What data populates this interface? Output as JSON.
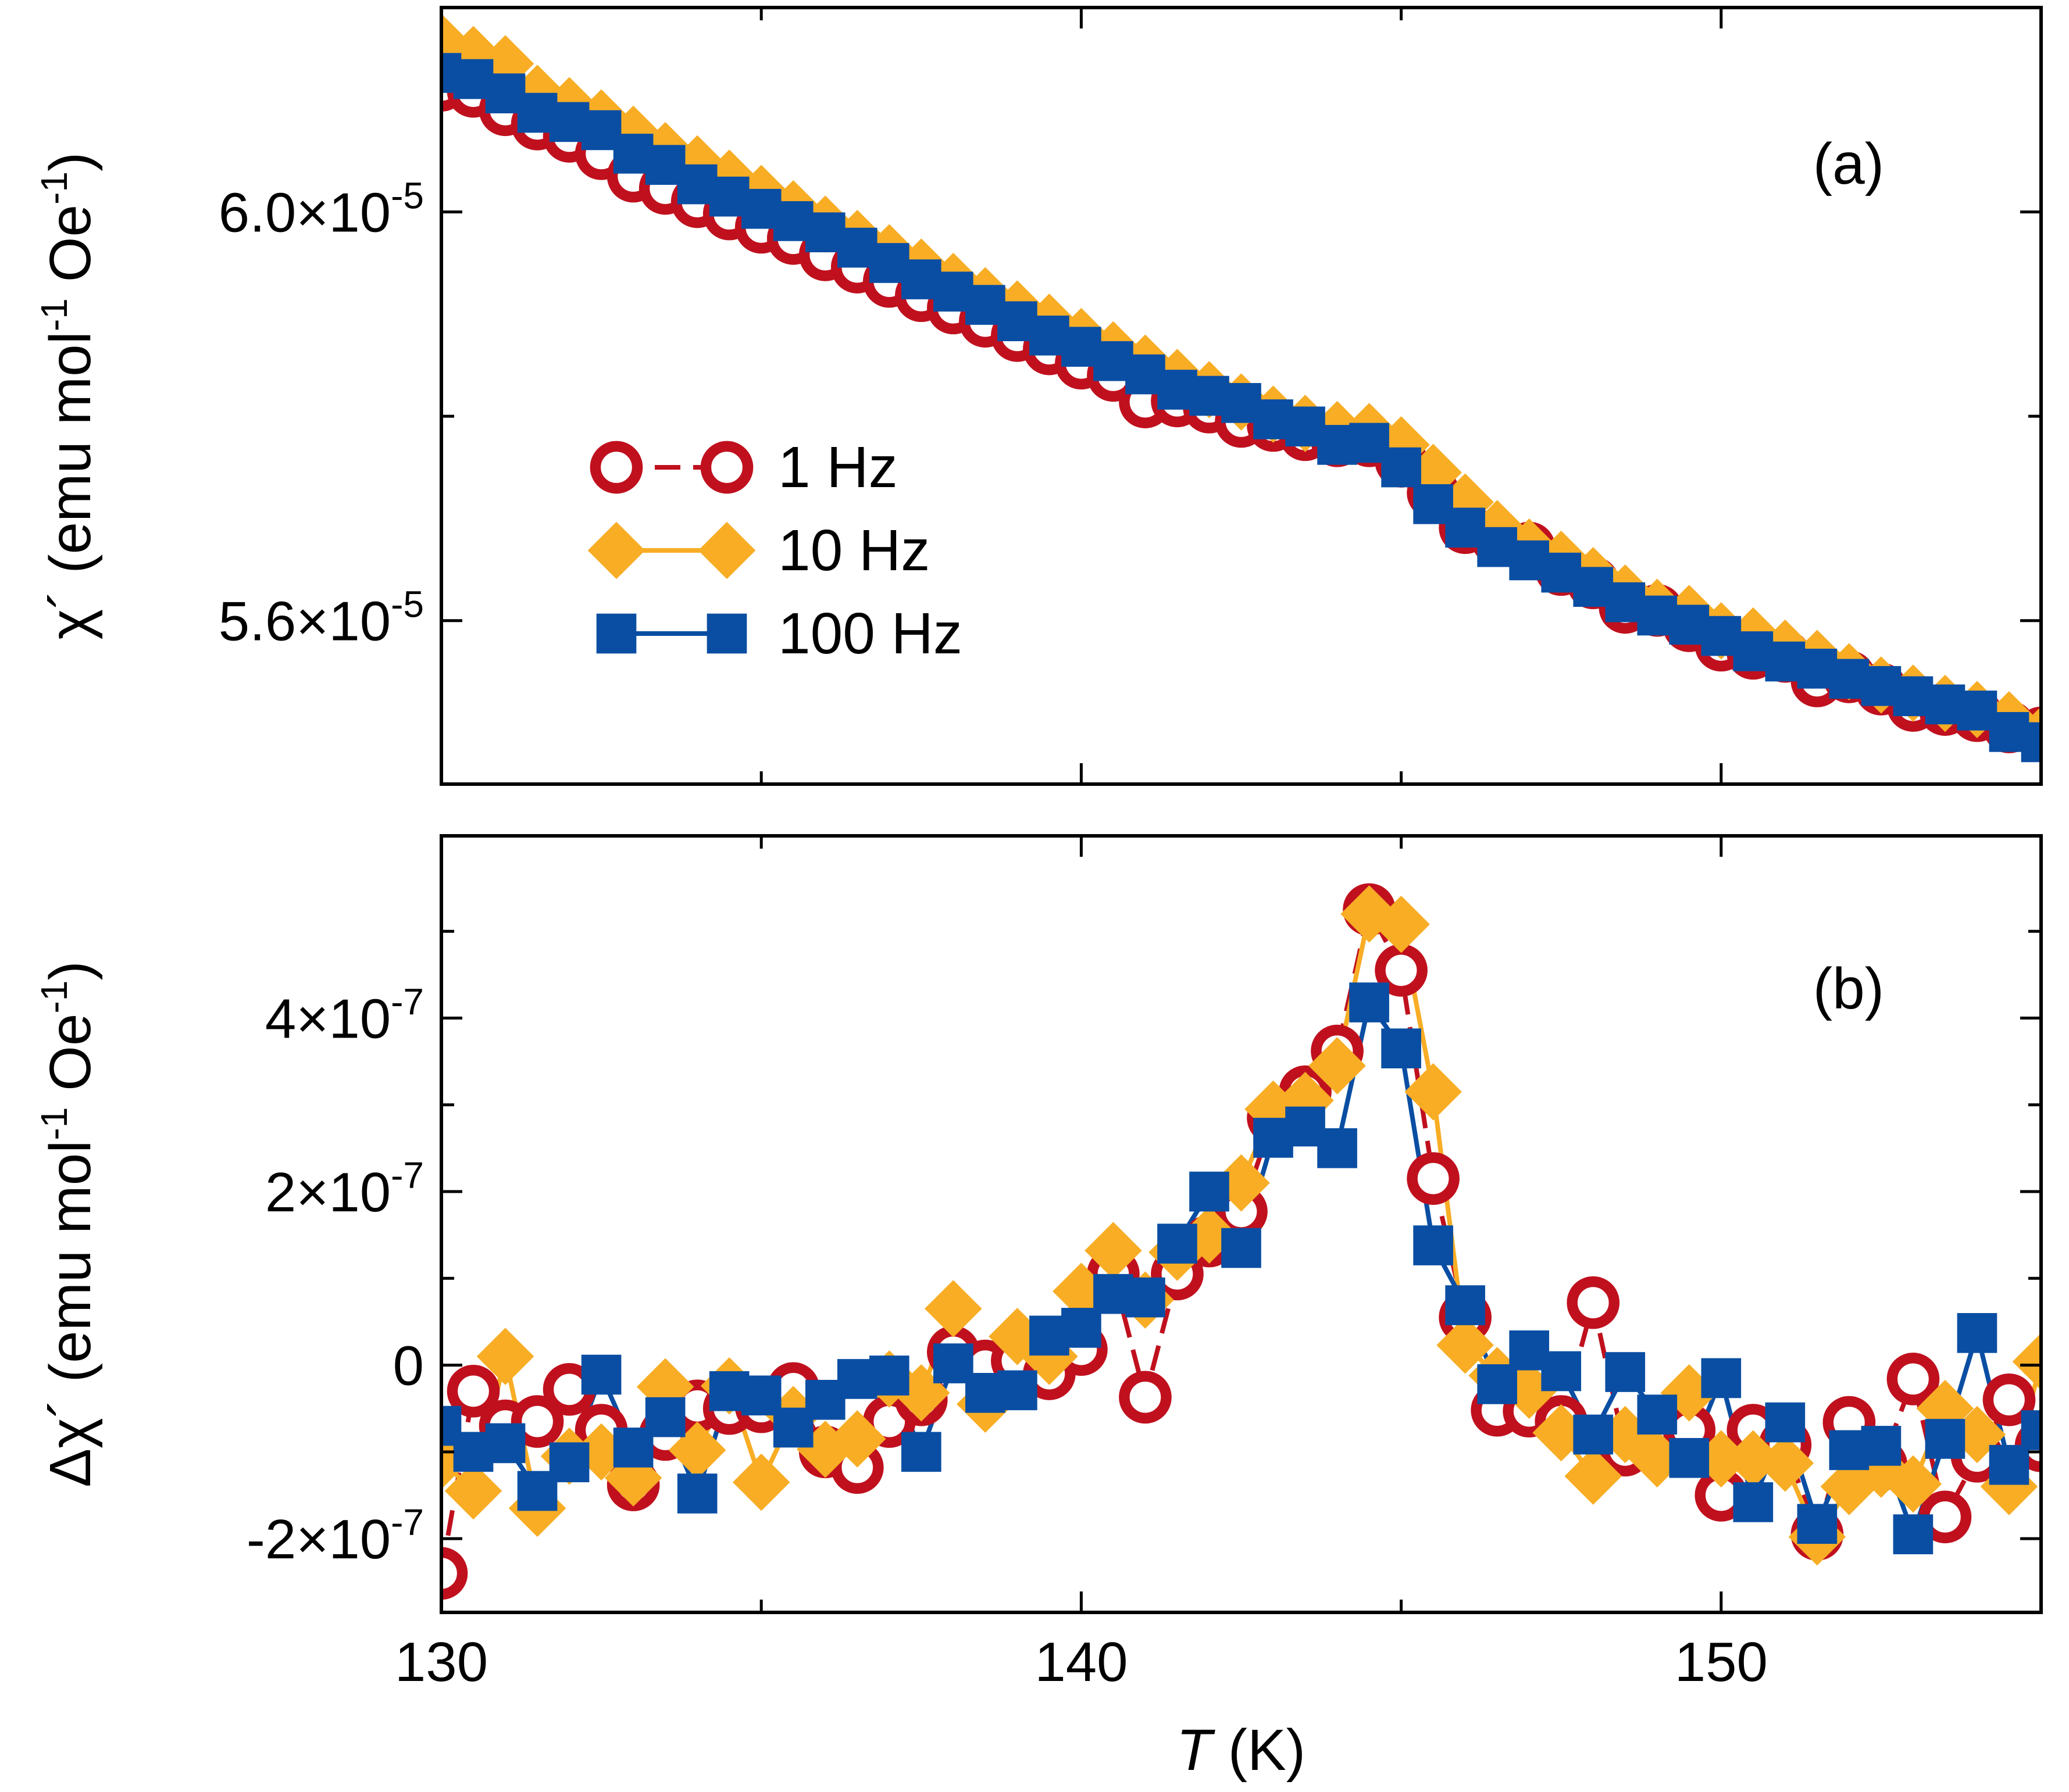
{
  "colors": {
    "s1": "#c0101e",
    "s10": "#f8ad25",
    "s100": "#0a4ea3",
    "axis": "#000000"
  },
  "chart_data": [
    {
      "id": "a",
      "type": "line",
      "panel_label": "(a)",
      "xlim": [
        130,
        155
      ],
      "ylim": [
        5.44e-05,
        6.2e-05
      ],
      "ylabel_parts": [
        "χ´ (emu mol",
        "-1",
        " Oe",
        "-1",
        ")"
      ],
      "yticks": [
        {
          "value": 6e-05,
          "mantissa": "6.0",
          "sep": "×10",
          "exp": "-5"
        },
        {
          "value": 5.6e-05,
          "mantissa": "5.6",
          "sep": "×10",
          "exp": "-5"
        }
      ],
      "yminor": [
        6.2e-05,
        5.8e-05
      ],
      "legend": [
        {
          "key": "s1",
          "label": "1 Hz",
          "marker": "open-circle",
          "dash": true
        },
        {
          "key": "s10",
          "label": "10 Hz",
          "marker": "diamond",
          "dash": false
        },
        {
          "key": "s100",
          "label": "100 Hz",
          "marker": "square",
          "dash": false
        }
      ],
      "series": [
        {
          "name": "1 Hz",
          "key": "s1",
          "marker": "open-circle",
          "dash": true,
          "x": [
            130,
            130.5,
            131,
            131.5,
            132,
            132.5,
            133,
            133.5,
            134,
            134.5,
            135,
            135.5,
            136,
            136.5,
            137,
            137.5,
            138,
            138.5,
            139,
            139.5,
            140,
            140.5,
            141,
            141.5,
            142,
            142.5,
            143,
            143.5,
            144,
            144.5,
            145,
            145.5,
            146,
            146.5,
            147,
            147.5,
            148,
            148.5,
            149,
            149.5,
            150,
            150.5,
            151,
            151.5,
            152,
            152.5,
            153,
            153.5,
            154,
            154.5,
            155
          ],
          "y": [
            6.124e-05,
            6.118e-05,
            6.1e-05,
            6.086e-05,
            6.074e-05,
            6.057e-05,
            6.035e-05,
            6.023e-05,
            6.01e-05,
            5.998e-05,
            5.985e-05,
            5.974e-05,
            5.958e-05,
            5.946e-05,
            5.932e-05,
            5.918e-05,
            5.906e-05,
            5.893e-05,
            5.879e-05,
            5.866e-05,
            5.852e-05,
            5.84e-05,
            5.814e-05,
            5.815e-05,
            5.809e-05,
            5.795e-05,
            5.791e-05,
            5.782e-05,
            5.776e-05,
            5.776e-05,
            5.756e-05,
            5.725e-05,
            5.691e-05,
            5.68e-05,
            5.671e-05,
            5.65e-05,
            5.637e-05,
            5.613e-05,
            5.61e-05,
            5.595e-05,
            5.576e-05,
            5.568e-05,
            5.565e-05,
            5.541e-05,
            5.545e-05,
            5.533e-05,
            5.517e-05,
            5.513e-05,
            5.507e-05,
            5.496e-05,
            5.49e-05
          ]
        },
        {
          "name": "10 Hz",
          "key": "s10",
          "marker": "diamond",
          "dash": false,
          "x": [
            130,
            130.5,
            131,
            131.5,
            132,
            132.5,
            133,
            133.5,
            134,
            134.5,
            135,
            135.5,
            136,
            136.5,
            137,
            137.5,
            138,
            138.5,
            139,
            139.5,
            140,
            140.5,
            141,
            141.5,
            142,
            142.5,
            143,
            143.5,
            144,
            144.5,
            145,
            145.5,
            146,
            146.5,
            147,
            147.5,
            148,
            148.5,
            149,
            149.5,
            150,
            150.5,
            151,
            151.5,
            152,
            152.5,
            153,
            153.5,
            154,
            154.5,
            155
          ],
          "y": [
            6.166e-05,
            6.154e-05,
            6.145e-05,
            6.116e-05,
            6.104e-05,
            6.092e-05,
            6.076e-05,
            6.06e-05,
            6.047e-05,
            6.033e-05,
            6.018e-05,
            6.003e-05,
            5.988e-05,
            5.974e-05,
            5.96e-05,
            5.946e-05,
            5.932e-05,
            5.918e-05,
            5.905e-05,
            5.892e-05,
            5.878e-05,
            5.865e-05,
            5.852e-05,
            5.838e-05,
            5.826e-05,
            5.814e-05,
            5.802e-05,
            5.793e-05,
            5.787e-05,
            5.785e-05,
            5.772e-05,
            5.745e-05,
            5.716e-05,
            5.69e-05,
            5.672e-05,
            5.66e-05,
            5.644e-05,
            5.627e-05,
            5.613e-05,
            5.607e-05,
            5.59e-05,
            5.585e-05,
            5.573e-05,
            5.563e-05,
            5.55e-05,
            5.537e-05,
            5.529e-05,
            5.519e-05,
            5.513e-05,
            5.503e-05,
            5.488e-05
          ]
        },
        {
          "name": "100 Hz",
          "key": "s100",
          "marker": "square",
          "dash": false,
          "x": [
            130,
            130.5,
            131,
            131.5,
            132,
            132.5,
            133,
            133.5,
            134,
            134.5,
            135,
            135.5,
            136,
            136.5,
            137,
            137.5,
            138,
            138.5,
            139,
            139.5,
            140,
            140.5,
            141,
            141.5,
            142,
            142.5,
            143,
            143.5,
            144,
            144.5,
            145,
            145.5,
            146,
            146.5,
            147,
            147.5,
            148,
            148.5,
            149,
            149.5,
            150,
            150.5,
            151,
            151.5,
            152,
            152.5,
            153,
            153.5,
            154,
            154.5,
            155
          ],
          "y": [
            6.136e-05,
            6.13e-05,
            6.116e-05,
            6.097e-05,
            6.088e-05,
            6.08e-05,
            6.057e-05,
            6.046e-05,
            6.027e-05,
            6.015e-05,
            6.003e-05,
            5.991e-05,
            5.98e-05,
            5.965e-05,
            5.95e-05,
            5.934e-05,
            5.922e-05,
            5.909e-05,
            5.893e-05,
            5.879e-05,
            5.868e-05,
            5.854e-05,
            5.841e-05,
            5.826e-05,
            5.82e-05,
            5.813e-05,
            5.797e-05,
            5.79e-05,
            5.772e-05,
            5.774e-05,
            5.75e-05,
            5.714e-05,
            5.691e-05,
            5.672e-05,
            5.659e-05,
            5.647e-05,
            5.633e-05,
            5.618e-05,
            5.605e-05,
            5.596e-05,
            5.585e-05,
            5.57e-05,
            5.56e-05,
            5.553e-05,
            5.543e-05,
            5.536e-05,
            5.526e-05,
            5.518e-05,
            5.512e-05,
            5.491e-05,
            5.481e-05
          ]
        }
      ]
    },
    {
      "id": "b",
      "type": "line",
      "panel_label": "(b)",
      "xlim": [
        130,
        155
      ],
      "ylim": [
        -2.85e-07,
        6.1e-07
      ],
      "xlabel_italic": "T",
      "xlabel_rest": " (K)",
      "xticks": [
        {
          "value": 130,
          "label": "130"
        },
        {
          "value": 140,
          "label": "140"
        },
        {
          "value": 150,
          "label": "150"
        }
      ],
      "xminor": [
        135,
        145
      ],
      "ylabel_parts": [
        "Δχ´ (emu mol",
        "-1",
        " Oe",
        "-1",
        ")"
      ],
      "yticks": [
        {
          "value": 4e-07,
          "mantissa": "4",
          "sep": "×10",
          "exp": "-7"
        },
        {
          "value": 2e-07,
          "mantissa": "2",
          "sep": "×10",
          "exp": "-7"
        },
        {
          "value": 0,
          "mantissa": "0",
          "sep": "",
          "exp": ""
        },
        {
          "value": -2e-07,
          "mantissa": "-2",
          "sep": "×10",
          "exp": "-7"
        }
      ],
      "yminor": [
        5e-07,
        3e-07,
        1e-07,
        -1e-07
      ],
      "series": [
        {
          "name": "1 Hz",
          "key": "s1",
          "marker": "open-circle",
          "dash": true,
          "x": [
            130,
            130.5,
            131,
            131.5,
            132,
            132.5,
            133,
            133.5,
            134,
            134.5,
            135,
            135.5,
            136,
            136.5,
            137,
            137.5,
            138,
            138.5,
            139,
            139.5,
            140,
            140.5,
            141,
            141.5,
            142,
            142.5,
            143,
            143.5,
            144,
            144.5,
            145,
            145.5,
            146,
            146.5,
            147,
            147.5,
            148,
            148.5,
            149,
            149.5,
            150,
            150.5,
            151,
            151.5,
            152,
            152.5,
            153,
            153.5,
            154,
            154.5,
            155
          ],
          "y": [
            -2.4e-07,
            -3e-08,
            -7e-08,
            -6.5e-08,
            -2.8e-08,
            -7.5e-08,
            -1.38e-07,
            -8e-08,
            -4.7e-08,
            -5e-08,
            -4.8e-08,
            -2.7e-08,
            -1e-07,
            -1.18e-07,
            -6.5e-08,
            -4e-08,
            1.5e-08,
            -1e-09,
            5e-09,
            -1e-08,
            1.8e-08,
            1.05e-07,
            -3.7e-08,
            1.05e-07,
            1.43e-07,
            1.77e-07,
            2.85e-07,
            3.15e-07,
            3.62e-07,
            5.25e-07,
            4.55e-07,
            2.15e-07,
            5.5e-08,
            -5.2e-08,
            -5.3e-08,
            -6.5e-08,
            7.2e-08,
            -9.8e-08,
            -9.6e-08,
            -7.5e-08,
            -1.5e-07,
            -7.5e-08,
            -9.2e-08,
            -1.95e-07,
            -6.6e-08,
            -1.15e-07,
            -1.6e-08,
            -1.75e-07,
            -1.05e-07,
            -4e-08,
            -9.3e-08
          ]
        },
        {
          "name": "10 Hz",
          "key": "s10",
          "marker": "diamond",
          "dash": false,
          "x": [
            130,
            130.5,
            131,
            131.5,
            132,
            132.5,
            133,
            133.5,
            134,
            134.5,
            135,
            135.5,
            136,
            136.5,
            137,
            137.5,
            138,
            138.5,
            139,
            139.5,
            140,
            140.5,
            141,
            141.5,
            142,
            142.5,
            143,
            143.5,
            144,
            144.5,
            145,
            145.5,
            146,
            146.5,
            147,
            147.5,
            148,
            148.5,
            149,
            149.5,
            150,
            150.5,
            151,
            151.5,
            152,
            152.5,
            153,
            153.5,
            154,
            154.5,
            155
          ],
          "y": [
            -1.1e-07,
            -1.45e-07,
            1e-08,
            -1.65e-07,
            -1.05e-07,
            -1e-07,
            -1.3e-07,
            -2.5e-08,
            -9.8e-08,
            -2.4e-08,
            -1.35e-07,
            -5.7e-08,
            -9.7e-08,
            -8.5e-08,
            -1.6e-08,
            -3.2e-08,
            6.5e-08,
            -4.5e-08,
            3.3e-08,
            1e-08,
            8.5e-08,
            1.32e-07,
            7.5e-08,
            1.3e-07,
            1.5e-07,
            2.1e-07,
            2.95e-07,
            3.05e-07,
            3.45e-07,
            5.2e-07,
            5.08e-07,
            3.15e-07,
            2.3e-08,
            -1.2e-08,
            -2.9e-08,
            -7.8e-08,
            -1.28e-07,
            -8e-08,
            -1.08e-07,
            -3.2e-08,
            -1.08e-07,
            -1.08e-07,
            -1.13e-07,
            -1.98e-07,
            -1.4e-07,
            -1.2e-07,
            -1.37e-07,
            -5e-08,
            -8e-08,
            -1.4e-07,
            4e-09
          ]
        },
        {
          "name": "100 Hz",
          "key": "s100",
          "marker": "square",
          "dash": false,
          "x": [
            130,
            130.5,
            131,
            131.5,
            132,
            132.5,
            133,
            133.5,
            134,
            134.5,
            135,
            135.5,
            136,
            136.5,
            137,
            137.5,
            138,
            138.5,
            139,
            139.5,
            140,
            140.5,
            141,
            141.5,
            142,
            142.5,
            143,
            143.5,
            144,
            144.5,
            145,
            145.5,
            146,
            146.5,
            147,
            147.5,
            148,
            148.5,
            149,
            149.5,
            150,
            150.5,
            151,
            151.5,
            152,
            152.5,
            153,
            153.5,
            154,
            154.5,
            155
          ],
          "y": [
            -7e-08,
            -1e-07,
            -9e-08,
            -1.45e-07,
            -1.12e-07,
            -1.1e-08,
            -9.5e-08,
            -6e-08,
            -1.48e-07,
            -3e-08,
            -3.5e-08,
            -7.2e-08,
            -4e-08,
            -1.6e-08,
            -1.2e-08,
            -1e-07,
            2e-09,
            -3.2e-08,
            -2.9e-08,
            3.4e-08,
            4.3e-08,
            8.2e-08,
            7.8e-08,
            1.4e-07,
            2e-07,
            1.35e-07,
            2.62e-07,
            2.75e-07,
            2.5e-07,
            4.18e-07,
            3.65e-07,
            1.38e-07,
            6.9e-08,
            -2.2e-08,
            1.7e-08,
            -7e-09,
            -8e-08,
            -8e-09,
            -5.7e-08,
            -1.07e-07,
            -1.5e-08,
            -1.58e-07,
            -6.6e-08,
            -1.83e-07,
            -9.8e-08,
            -9.3e-08,
            -1.95e-07,
            -8.5e-08,
            3.7e-08,
            -1.15e-07,
            -7.5e-08
          ]
        }
      ]
    }
  ]
}
